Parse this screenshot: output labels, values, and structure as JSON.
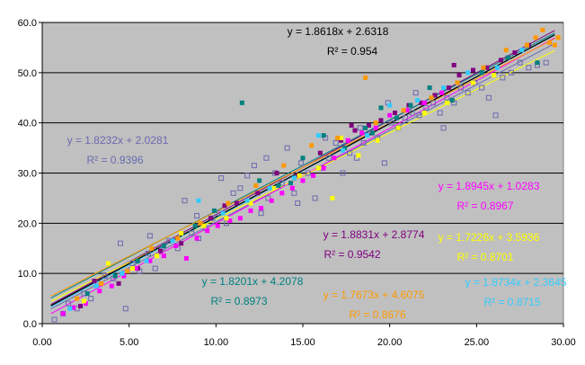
{
  "chart_data": {
    "type": "scatter",
    "xlim": [
      0,
      30
    ],
    "ylim": [
      0,
      60
    ],
    "x_ticks": [
      "0.00",
      "5.00",
      "10.00",
      "15.00",
      "20.00",
      "25.00",
      "30.00"
    ],
    "y_ticks": [
      "0.0",
      "10.0",
      "20.0",
      "30.0",
      "40.0",
      "50.0",
      "60.0"
    ],
    "grid": "horizontal",
    "plot_background": "#c0c0c0",
    "legend": "none",
    "series": [
      {
        "color": "#6a6ab0",
        "marker": "open-square",
        "slope": 1.8232,
        "intercept": 2.0281,
        "equation": "y = 1.8232x + 2.0281",
        "r2": "R² = 0.9396",
        "points": [
          [
            0.7,
            0.8
          ],
          [
            1.2,
            2.0
          ],
          [
            1.5,
            4.0
          ],
          [
            2.0,
            3.0
          ],
          [
            2.4,
            6.0
          ],
          [
            2.8,
            5.0
          ],
          [
            3.2,
            8.0
          ],
          [
            3.6,
            9.5
          ],
          [
            4.1,
            9.0
          ],
          [
            4.5,
            16.0
          ],
          [
            4.8,
            3.0
          ],
          [
            5.2,
            12.0
          ],
          [
            5.6,
            10.5
          ],
          [
            6.1,
            14.0
          ],
          [
            6.5,
            11.0
          ],
          [
            6.9,
            15.0
          ],
          [
            7.3,
            16.5
          ],
          [
            7.8,
            15.0
          ],
          [
            8.2,
            24.5
          ],
          [
            8.6,
            18.0
          ],
          [
            9.0,
            17.0
          ],
          [
            9.4,
            19.0
          ],
          [
            9.8,
            21.0
          ],
          [
            10.2,
            22.0
          ],
          [
            10.6,
            20.0
          ],
          [
            11.0,
            26.0
          ],
          [
            11.4,
            27.0
          ],
          [
            11.8,
            29.5
          ],
          [
            12.2,
            31.5
          ],
          [
            12.6,
            22.0
          ],
          [
            13.0,
            25.0
          ],
          [
            13.4,
            30.0
          ],
          [
            13.8,
            28.0
          ],
          [
            14.1,
            35.0
          ],
          [
            14.5,
            26.0
          ],
          [
            14.9,
            32.0
          ],
          [
            15.3,
            30.0
          ],
          [
            15.7,
            25.0
          ],
          [
            16.1,
            31.0
          ],
          [
            16.5,
            33.0
          ],
          [
            16.9,
            36.0
          ],
          [
            17.3,
            30.0
          ],
          [
            17.7,
            34.0
          ],
          [
            18.1,
            33.0
          ],
          [
            18.5,
            36.0
          ],
          [
            18.9,
            38.0
          ],
          [
            19.3,
            37.0
          ],
          [
            19.7,
            32.0
          ],
          [
            20.1,
            40.0
          ],
          [
            20.5,
            39.0
          ],
          [
            20.9,
            41.0
          ],
          [
            21.3,
            42.0
          ],
          [
            21.7,
            41.5
          ],
          [
            22.1,
            43.0
          ],
          [
            22.5,
            44.0
          ],
          [
            22.9,
            42.0
          ],
          [
            23.3,
            45.0
          ],
          [
            23.7,
            44.0
          ],
          [
            24.1,
            47.0
          ],
          [
            24.5,
            46.0
          ],
          [
            24.9,
            48.0
          ],
          [
            25.3,
            47.0
          ],
          [
            25.7,
            45.0
          ],
          [
            26.1,
            41.5
          ],
          [
            26.5,
            49.0
          ],
          [
            27.0,
            50.0
          ],
          [
            27.5,
            52.0
          ],
          [
            28.0,
            51.0
          ],
          [
            28.5,
            51.5
          ],
          [
            29.0,
            52.0
          ],
          [
            14.7,
            24.0
          ],
          [
            12.9,
            33.0
          ],
          [
            10.3,
            29.0
          ],
          [
            21.5,
            46.0
          ],
          [
            18.3,
            39.0
          ],
          [
            6.2,
            17.5
          ],
          [
            8.9,
            21.5
          ],
          [
            16.3,
            37.0
          ],
          [
            19.9,
            44.0
          ],
          [
            23.1,
            39.0
          ]
        ]
      },
      {
        "color": "#800080",
        "marker": "filled-square",
        "slope": 1.8831,
        "intercept": 2.8774,
        "equation": "y = 1.8831x + 2.8774",
        "r2": "R² = 0.9542",
        "points": [
          [
            2.2,
            3.5
          ],
          [
            3.0,
            8.5
          ],
          [
            4.4,
            8.0
          ],
          [
            5.5,
            11.0
          ],
          [
            6.8,
            14.5
          ],
          [
            8.0,
            16.0
          ],
          [
            9.7,
            21.0
          ],
          [
            10.5,
            23.5
          ],
          [
            11.2,
            24.0
          ],
          [
            12.4,
            26.0
          ],
          [
            13.5,
            30.0
          ],
          [
            14.7,
            29.5
          ],
          [
            16.0,
            34.0
          ],
          [
            17.2,
            36.5
          ],
          [
            18.0,
            38.5
          ],
          [
            18.8,
            39.5
          ],
          [
            19.5,
            40.5
          ],
          [
            20.3,
            42.0
          ],
          [
            21.1,
            43.5
          ],
          [
            21.8,
            44.0
          ],
          [
            22.6,
            45.5
          ],
          [
            23.4,
            47.0
          ],
          [
            24.0,
            49.5
          ],
          [
            24.8,
            50.5
          ],
          [
            25.6,
            51.0
          ],
          [
            26.4,
            52.5
          ],
          [
            27.2,
            54.0
          ],
          [
            28.0,
            55.5
          ],
          [
            17.8,
            39.5
          ],
          [
            23.7,
            51.5
          ]
        ]
      },
      {
        "color": "#008080",
        "marker": "filled-square",
        "slope": 1.8201,
        "intercept": 4.2078,
        "equation": "y = 1.8201x + 4.2078",
        "r2": "R² = 0.8973",
        "points": [
          [
            2.6,
            6.0
          ],
          [
            4.2,
            9.5
          ],
          [
            5.5,
            12.5
          ],
          [
            7.0,
            15.5
          ],
          [
            8.8,
            19.5
          ],
          [
            9.9,
            22.5
          ],
          [
            11.5,
            44.0
          ],
          [
            12.5,
            28.5
          ],
          [
            13.6,
            27.5
          ],
          [
            15.0,
            33.0
          ],
          [
            16.2,
            37.5
          ],
          [
            17.4,
            35.0
          ],
          [
            18.6,
            39.0
          ],
          [
            19.5,
            43.0
          ],
          [
            20.4,
            41.0
          ],
          [
            21.2,
            43.5
          ],
          [
            22.3,
            47.0
          ],
          [
            23.6,
            44.5
          ],
          [
            25.3,
            50.0
          ],
          [
            26.8,
            53.0
          ],
          [
            28.5,
            52.0
          ],
          [
            14.3,
            28.0
          ],
          [
            19.0,
            38.0
          ]
        ]
      },
      {
        "color": "#ff00ff",
        "marker": "filled-square",
        "slope": 1.8945,
        "intercept": 1.0283,
        "equation": "y = 1.8945x + 1.0283",
        "r2": "R² = 0.8967",
        "points": [
          [
            1.2,
            2.0
          ],
          [
            1.8,
            3.2
          ],
          [
            2.5,
            4.0
          ],
          [
            3.3,
            6.5
          ],
          [
            4.0,
            7.5
          ],
          [
            4.7,
            9.5
          ],
          [
            5.4,
            11.0
          ],
          [
            6.2,
            12.5
          ],
          [
            7.0,
            13.5
          ],
          [
            7.7,
            15.5
          ],
          [
            8.3,
            13.0
          ],
          [
            8.9,
            17.0
          ],
          [
            9.5,
            18.5
          ],
          [
            10.1,
            19.5
          ],
          [
            10.8,
            20.5
          ],
          [
            11.4,
            21.0
          ],
          [
            12.0,
            22.5
          ],
          [
            12.6,
            23.0
          ],
          [
            13.2,
            24.5
          ],
          [
            13.8,
            26.0
          ],
          [
            14.4,
            27.0
          ],
          [
            15.0,
            28.5
          ],
          [
            15.6,
            29.5
          ],
          [
            16.2,
            31.0
          ],
          [
            16.8,
            33.0
          ],
          [
            17.6,
            36.5
          ],
          [
            18.4,
            38.0
          ],
          [
            19.2,
            39.0
          ],
          [
            20.0,
            41.5
          ],
          [
            21.0,
            42.5
          ],
          [
            22.0,
            44.0
          ],
          [
            23.0,
            46.0
          ]
        ]
      },
      {
        "color": "#ffff00",
        "marker": "filled-square",
        "slope": 1.7226,
        "intercept": 3.5936,
        "equation": "y = 1.7226x + 3.5936",
        "r2": "R² = 0.8701",
        "points": [
          [
            2.4,
            4.5
          ],
          [
            3.8,
            12.0
          ],
          [
            5.2,
            11.0
          ],
          [
            6.6,
            13.5
          ],
          [
            8.0,
            18.0
          ],
          [
            9.3,
            19.5
          ],
          [
            10.6,
            21.0
          ],
          [
            12.0,
            24.0
          ],
          [
            13.3,
            27.0
          ],
          [
            14.8,
            29.5
          ],
          [
            15.9,
            31.0
          ],
          [
            16.7,
            25.0
          ],
          [
            17.2,
            37.0
          ],
          [
            18.2,
            33.5
          ],
          [
            19.3,
            36.5
          ],
          [
            20.5,
            39.0
          ],
          [
            22.0,
            42.0
          ],
          [
            23.3,
            44.0
          ],
          [
            24.8,
            48.0
          ],
          [
            26.0,
            49.5
          ]
        ]
      },
      {
        "color": "#33ccff",
        "marker": "filled-square",
        "slope": 1.8734,
        "intercept": 2.3645,
        "equation": "y = 1.8734x + 2.3645",
        "r2": "R² = 0.8715",
        "points": [
          [
            1.6,
            3.0
          ],
          [
            3.1,
            7.5
          ],
          [
            4.6,
            10.0
          ],
          [
            6.0,
            12.5
          ],
          [
            7.5,
            16.5
          ],
          [
            9.0,
            24.5
          ],
          [
            10.4,
            22.0
          ],
          [
            11.8,
            24.5
          ],
          [
            13.1,
            27.0
          ],
          [
            14.5,
            29.0
          ],
          [
            15.9,
            37.5
          ],
          [
            17.3,
            34.5
          ],
          [
            18.7,
            37.5
          ],
          [
            20.0,
            43.5
          ],
          [
            21.6,
            44.5
          ],
          [
            23.1,
            47.0
          ],
          [
            24.5,
            50.0
          ],
          [
            26.2,
            51.0
          ],
          [
            27.6,
            54.5
          ]
        ]
      },
      {
        "color": "#ff9900",
        "marker": "filled-square",
        "slope": 1.7673,
        "intercept": 4.6075,
        "equation": "y = 1.7673x + 4.6075",
        "r2": "R² = 0.8676",
        "points": [
          [
            2.0,
            5.0
          ],
          [
            3.4,
            8.0
          ],
          [
            4.9,
            10.5
          ],
          [
            6.3,
            15.0
          ],
          [
            7.8,
            17.0
          ],
          [
            9.1,
            20.0
          ],
          [
            10.7,
            24.0
          ],
          [
            12.3,
            27.5
          ],
          [
            13.9,
            31.5
          ],
          [
            15.5,
            35.5
          ],
          [
            17.0,
            37.0
          ],
          [
            18.6,
            49.0
          ],
          [
            19.2,
            40.0
          ],
          [
            20.8,
            42.5
          ],
          [
            22.4,
            45.0
          ],
          [
            23.9,
            48.0
          ],
          [
            25.4,
            51.0
          ],
          [
            26.7,
            54.5
          ],
          [
            27.9,
            55.5
          ],
          [
            28.4,
            57.0
          ],
          [
            28.8,
            58.5
          ],
          [
            29.2,
            56.0
          ],
          [
            29.5,
            55.5
          ],
          [
            29.7,
            57.0
          ]
        ]
      }
    ],
    "overall_trendline": {
      "color": "#000000",
      "slope": 1.8618,
      "intercept": 2.6318,
      "equation": "y = 1.8618x + 2.6318",
      "r2": "R² = 0.954"
    }
  }
}
